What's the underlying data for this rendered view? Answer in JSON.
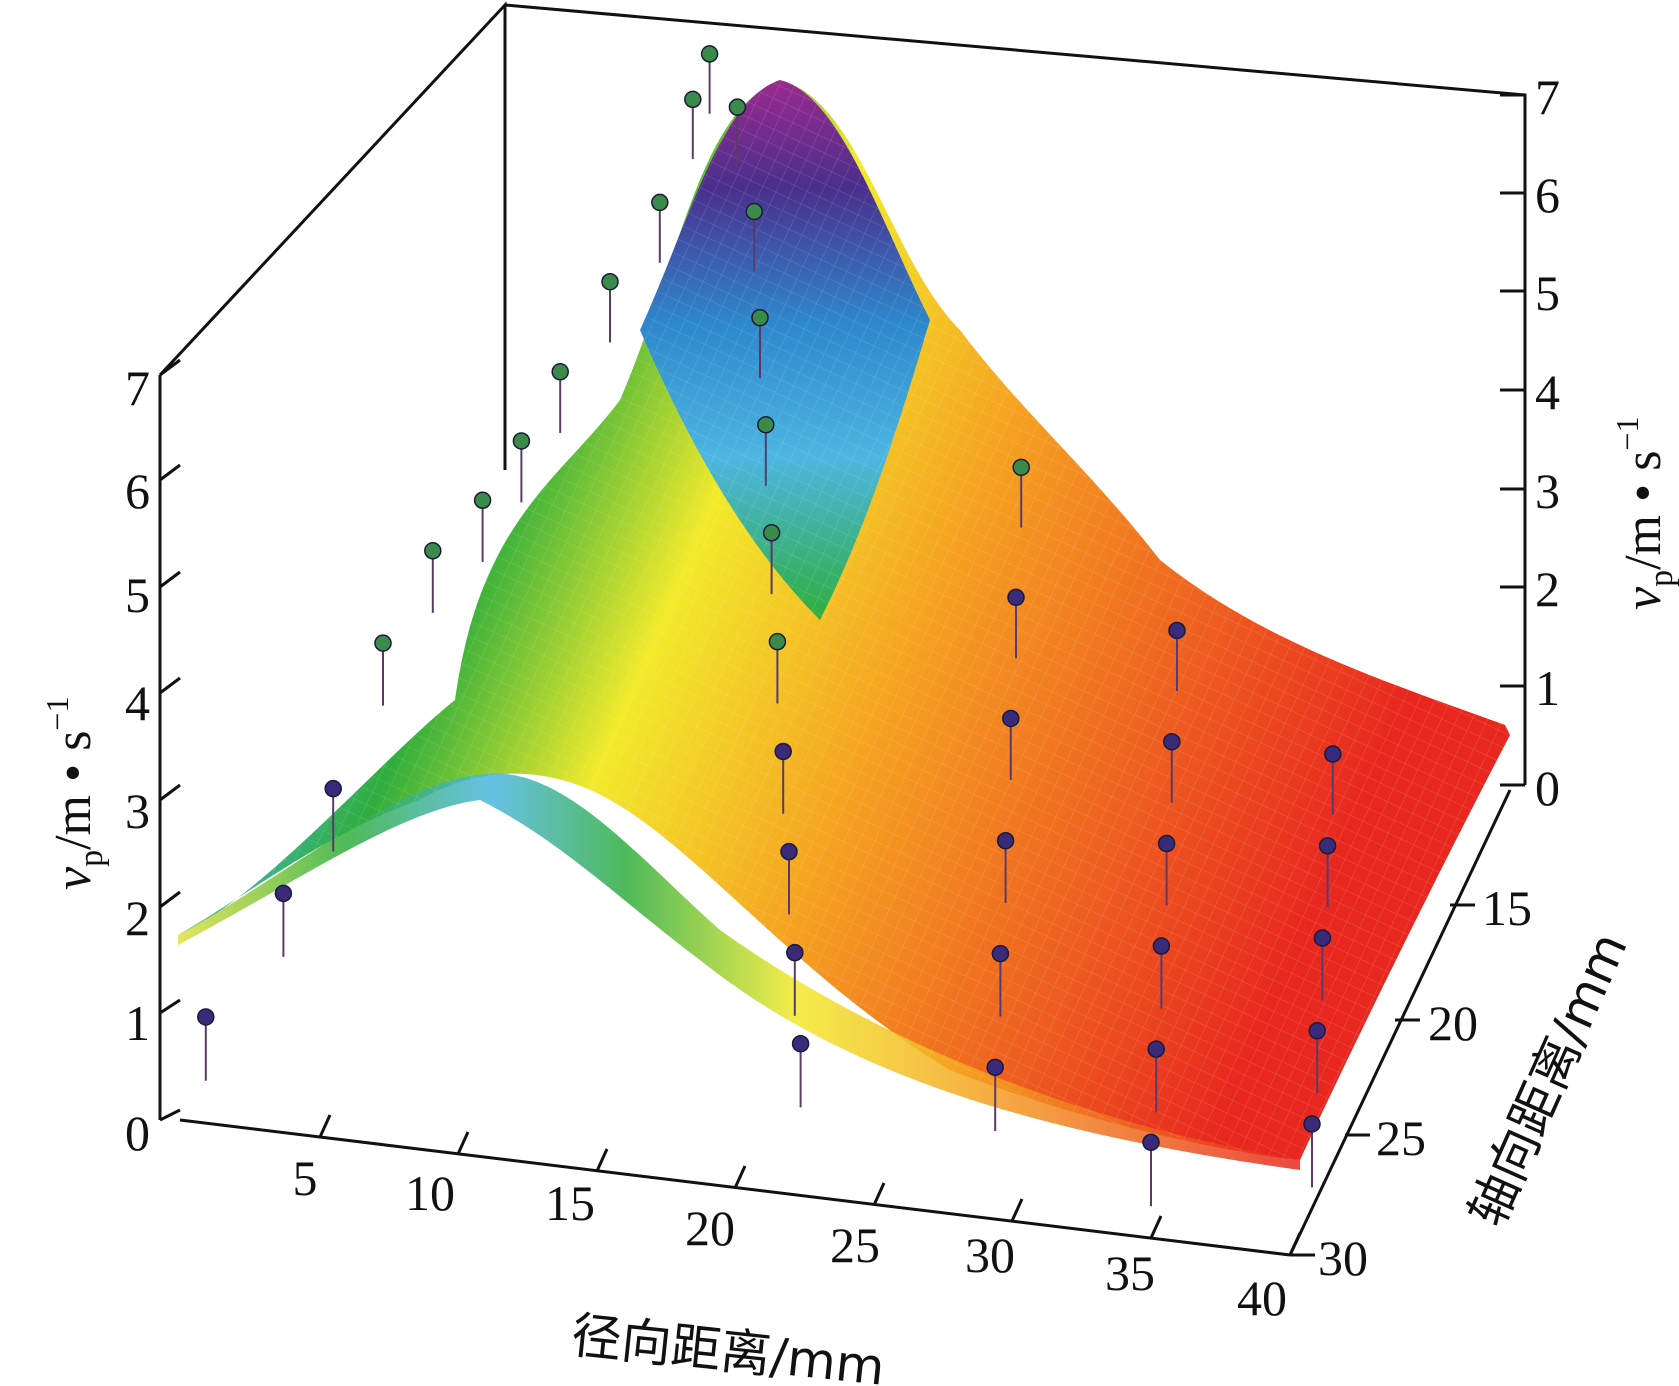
{
  "chart_data": {
    "type": "surface3d",
    "xlabel": "径向距离/mm",
    "ylabel": "轴向距离/mm",
    "zlabel": {
      "symbol": "v",
      "sub": "p",
      "unit": "/m • s",
      "exp": "−1"
    },
    "x_ticks": [
      "5",
      "10",
      "15",
      "20",
      "25",
      "30",
      "35",
      "40"
    ],
    "y_ticks": [
      "15",
      "20",
      "25",
      "30"
    ],
    "z_ticks": [
      "0",
      "1",
      "2",
      "3",
      "4",
      "5",
      "6",
      "7"
    ],
    "xlim": [
      0,
      40
    ],
    "ylim": [
      10,
      30
    ],
    "zlim": [
      0,
      7
    ],
    "colormap": [
      "#e8281e",
      "#f07020",
      "#f5b020",
      "#f2ea2a",
      "#2fae3c",
      "#4cb6e0",
      "#2d88cc",
      "#4a2f8c",
      "#9a2a8e"
    ],
    "surface_model": "gaussian ridge along radial distance, peak ≈ 6.9 m/s near (12 mm, 12 mm), decaying with radial and axial distance",
    "points": [
      {
        "x": 1,
        "y": 30,
        "z": 1.0
      },
      {
        "x": 3,
        "y": 28,
        "z": 1.8
      },
      {
        "x": 4,
        "y": 26,
        "z": 2.4
      },
      {
        "x": 5,
        "y": 24,
        "z": 3.4
      },
      {
        "x": 6,
        "y": 22,
        "z": 3.9
      },
      {
        "x": 7,
        "y": 20,
        "z": 4.0
      },
      {
        "x": 8,
        "y": 19,
        "z": 4.4
      },
      {
        "x": 9,
        "y": 18,
        "z": 4.9
      },
      {
        "x": 10,
        "y": 16,
        "z": 5.4
      },
      {
        "x": 11,
        "y": 14,
        "z": 5.8
      },
      {
        "x": 12,
        "y": 12,
        "z": 6.9
      },
      {
        "x": 13,
        "y": 12,
        "z": 6.4
      },
      {
        "x": 11,
        "y": 11,
        "z": 6.2
      },
      {
        "x": 14,
        "y": 13,
        "z": 5.6
      },
      {
        "x": 15,
        "y": 15,
        "z": 5.0
      },
      {
        "x": 16,
        "y": 17,
        "z": 4.4
      },
      {
        "x": 17,
        "y": 19,
        "z": 3.8
      },
      {
        "x": 18,
        "y": 21,
        "z": 3.2
      },
      {
        "x": 19,
        "y": 23,
        "z": 2.6
      },
      {
        "x": 20,
        "y": 25,
        "z": 2.1
      },
      {
        "x": 21,
        "y": 27,
        "z": 1.6
      },
      {
        "x": 22,
        "y": 29,
        "z": 1.2
      },
      {
        "x": 24,
        "y": 14,
        "z": 3.6
      },
      {
        "x": 25,
        "y": 17,
        "z": 3.0
      },
      {
        "x": 26,
        "y": 20,
        "z": 2.5
      },
      {
        "x": 27,
        "y": 23,
        "z": 2.0
      },
      {
        "x": 28,
        "y": 26,
        "z": 1.6
      },
      {
        "x": 29,
        "y": 29,
        "z": 1.2
      },
      {
        "x": 30,
        "y": 15,
        "z": 2.4
      },
      {
        "x": 31,
        "y": 18,
        "z": 2.0
      },
      {
        "x": 32,
        "y": 21,
        "z": 1.7
      },
      {
        "x": 33,
        "y": 24,
        "z": 1.4
      },
      {
        "x": 34,
        "y": 27,
        "z": 1.1
      },
      {
        "x": 35,
        "y": 30,
        "z": 0.9
      },
      {
        "x": 36,
        "y": 16,
        "z": 1.6
      },
      {
        "x": 37,
        "y": 19,
        "z": 1.4
      },
      {
        "x": 38,
        "y": 22,
        "z": 1.2
      },
      {
        "x": 39,
        "y": 25,
        "z": 1.0
      },
      {
        "x": 40,
        "y": 28,
        "z": 0.8
      }
    ]
  }
}
